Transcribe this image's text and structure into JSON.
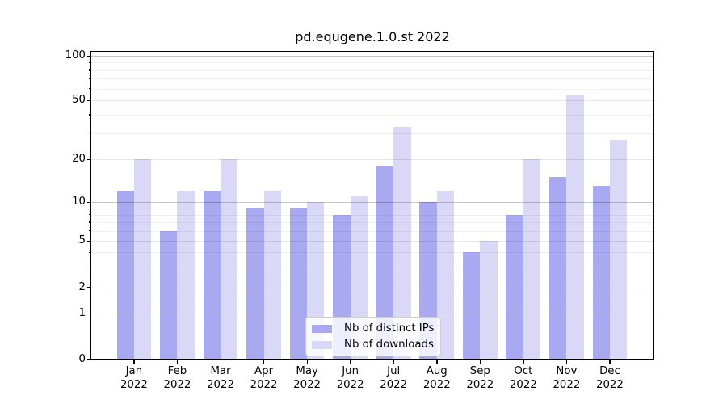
{
  "title": "pd.equgene.1.0.st 2022",
  "chart_data": {
    "type": "bar",
    "title": "pd.equgene.1.0.st 2022",
    "categories": [
      "Jan",
      "Feb",
      "Mar",
      "Apr",
      "May",
      "Jun",
      "Jul",
      "Aug",
      "Sep",
      "Oct",
      "Nov",
      "Dec"
    ],
    "x_tick_year": "2022",
    "series": [
      {
        "name": "Nb of distinct IPs",
        "color": "#a9a9f2",
        "values": [
          12,
          6,
          12,
          9,
          9,
          8,
          18,
          10,
          4,
          8,
          15,
          13
        ]
      },
      {
        "name": "Nb of downloads",
        "color": "#d9d9f7",
        "values": [
          20,
          12,
          20,
          12,
          10,
          11,
          33,
          12,
          5,
          20,
          54,
          27
        ]
      }
    ],
    "yscale": "symlog",
    "ylim": [
      0,
      109
    ],
    "y_major_ticks": [
      0,
      1,
      2,
      5,
      10,
      20,
      50,
      100
    ],
    "y_minor_ticks": [
      3,
      4,
      6,
      7,
      8,
      9,
      30,
      40,
      60,
      70,
      80,
      90
    ],
    "grid": true,
    "legend_position": "lower center"
  },
  "colors": {
    "background": "#ffffff",
    "spine": "#000000",
    "grid_decade": "rgba(0,0,0,0.22)",
    "grid_major": "rgba(0,0,0,0.10)",
    "grid_minor": "rgba(0,0,0,0.06)",
    "legend_border": "#cccccc"
  }
}
